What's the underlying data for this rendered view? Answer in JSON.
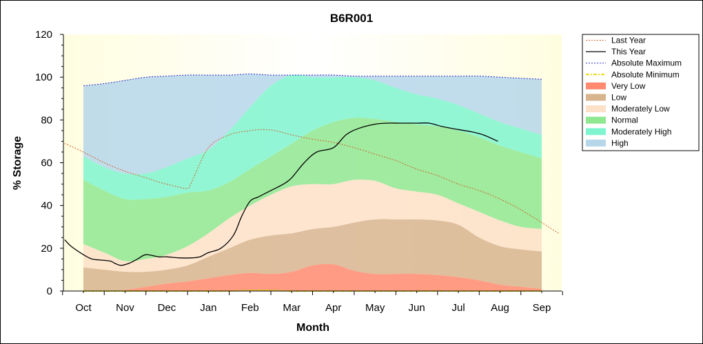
{
  "chart_data": {
    "type": "area",
    "title": "B6R001",
    "xlabel": "Month",
    "ylabel": "% Storage",
    "ylim": [
      0,
      120
    ],
    "y_ticks": [
      "0",
      "20",
      "40",
      "60",
      "80",
      "100",
      "120"
    ],
    "month_labels": [
      "Oct",
      "Nov",
      "Dec",
      "Jan",
      "Feb",
      "Mar",
      "Apr",
      "May",
      "Jun",
      "Jul",
      "Aug",
      "Sep"
    ],
    "legend_position": "right",
    "bands": [
      {
        "name": "Very Low",
        "color": "#ff8a70",
        "x": [
          0,
          0.5,
          1,
          1.5,
          2,
          2.5,
          3,
          3.5,
          4,
          4.5,
          5,
          5.5,
          6,
          6.5,
          7,
          7.5,
          8,
          8.5,
          9,
          9.5,
          10,
          10.5,
          11
        ],
        "lower": [
          0,
          0,
          0,
          0,
          0,
          0,
          0,
          0,
          0,
          0,
          0,
          0,
          0,
          0,
          0,
          0,
          0,
          0,
          0,
          0,
          0,
          0,
          0
        ],
        "upper": [
          0,
          0,
          0.5,
          2,
          3.5,
          4.5,
          6,
          7.5,
          8.5,
          8,
          9,
          12,
          12.5,
          9.5,
          8,
          8,
          8,
          7.5,
          6.5,
          5,
          3,
          2,
          1
        ]
      },
      {
        "name": "Low",
        "color": "#d8b48e",
        "x": [
          0,
          0.5,
          1,
          1.5,
          2,
          2.5,
          3,
          3.5,
          4,
          4.5,
          5,
          5.5,
          6,
          6.5,
          7,
          7.5,
          8,
          8.5,
          9,
          9.5,
          10,
          10.5,
          11
        ],
        "upper": [
          11,
          10,
          9,
          9,
          10,
          12,
          16,
          20,
          24,
          26,
          27,
          29,
          30,
          32,
          33.5,
          33.5,
          33.5,
          33,
          31,
          25,
          21,
          19.5,
          18.5
        ]
      },
      {
        "name": "Moderately Low",
        "color": "#fde0c8",
        "x": [
          0,
          0.5,
          1,
          1.5,
          2,
          2.5,
          3,
          3.5,
          4,
          4.5,
          5,
          5.5,
          6,
          6.5,
          7,
          7.5,
          8,
          8.5,
          9,
          9.5,
          10,
          10.5,
          11
        ],
        "upper": [
          22,
          18,
          14,
          15,
          17,
          21,
          27,
          34,
          40,
          45,
          49,
          50,
          50,
          52,
          51.5,
          48,
          46.5,
          45,
          41,
          37,
          33,
          30,
          29
        ]
      },
      {
        "name": "Normal",
        "color": "#8fe890",
        "x": [
          0,
          0.5,
          1,
          1.5,
          2,
          2.5,
          3,
          3.5,
          4,
          4.5,
          5,
          5.5,
          6,
          6.5,
          7,
          7.5,
          8,
          8.5,
          9,
          9.5,
          10,
          10.5,
          11
        ],
        "upper": [
          52,
          47,
          43,
          43,
          44,
          46,
          47,
          51,
          57,
          63,
          69,
          75,
          79,
          81,
          80.5,
          79,
          78,
          77,
          75,
          72,
          68,
          65,
          62
        ]
      },
      {
        "name": "Moderately High",
        "color": "#7ff5cf",
        "x": [
          0,
          0.5,
          1,
          1.5,
          2,
          2.5,
          3,
          3.5,
          4,
          4.5,
          5,
          5.5,
          6,
          6.5,
          7,
          7.5,
          8,
          8.5,
          9,
          9.5,
          10,
          10.5,
          11
        ],
        "upper": [
          63,
          58,
          55,
          55,
          58,
          62,
          66,
          75,
          86,
          96,
          101,
          100,
          100,
          100,
          98.5,
          95,
          92,
          90,
          87,
          83,
          79,
          76,
          73
        ]
      },
      {
        "name": "High",
        "color": "#b6d6ea",
        "x": [
          0,
          0.5,
          1,
          1.5,
          2,
          2.5,
          3,
          3.5,
          4,
          4.5,
          5,
          5.5,
          6,
          6.5,
          7,
          7.5,
          8,
          8.5,
          9,
          9.5,
          10,
          10.5,
          11
        ],
        "upper": [
          96,
          97,
          98.5,
          100,
          100.5,
          101,
          101,
          101,
          101.5,
          101,
          101,
          101,
          101,
          100.5,
          100.5,
          100.5,
          100.5,
          100.5,
          100.5,
          100.5,
          100,
          99.5,
          99
        ]
      }
    ],
    "series": [
      {
        "name": "Last Year",
        "color": "#d06028",
        "style": "dotted",
        "x": [
          -0.45,
          0,
          0.5,
          1,
          1.5,
          1.8,
          2.2,
          2.5,
          2.6,
          3,
          3.5,
          4,
          4.3,
          4.6,
          5,
          5.5,
          6,
          6.5,
          7,
          7.5,
          8,
          8.5,
          9,
          9.5,
          10,
          10.5,
          11,
          11.4
        ],
        "y": [
          69,
          65,
          60,
          56,
          53,
          51,
          49,
          48,
          51,
          67,
          73,
          75,
          75.5,
          75,
          73,
          71,
          69.5,
          67,
          64,
          61,
          57,
          54,
          50,
          47,
          43,
          38,
          32,
          27
        ]
      },
      {
        "name": "This Year",
        "color": "#000000",
        "style": "solid",
        "x": [
          -0.45,
          -0.3,
          0,
          0.2,
          0.4,
          0.65,
          0.75,
          0.9,
          1.1,
          1.3,
          1.5,
          1.8,
          2,
          2.3,
          2.6,
          2.8,
          3,
          3.3,
          3.6,
          3.8,
          4,
          4.2,
          4.5,
          4.8,
          5,
          5.3,
          5.6,
          6,
          6.3,
          6.6,
          7,
          7.3,
          7.6,
          8,
          8.3,
          8.6,
          9,
          9.3,
          9.6,
          9.95
        ],
        "y": [
          24,
          21,
          17,
          15,
          14.5,
          14,
          13,
          12,
          13,
          15,
          17,
          16,
          16,
          15.5,
          15.5,
          16,
          18,
          20,
          26,
          35,
          42,
          44,
          47,
          50,
          53,
          60,
          65,
          67,
          73,
          76,
          78,
          78.5,
          78.5,
          78.5,
          78.5,
          77,
          75.5,
          74.5,
          73,
          70
        ]
      },
      {
        "name": "Absolute Maximum",
        "color": "#2828c8",
        "style": "dotted",
        "x": [
          0,
          0.5,
          1,
          1.5,
          2,
          2.5,
          3,
          3.5,
          4,
          4.5,
          5,
          5.5,
          6,
          6.5,
          7,
          7.5,
          8,
          8.5,
          9,
          9.5,
          10,
          10.5,
          11
        ],
        "y": [
          96,
          97,
          98.5,
          100,
          100.5,
          101,
          101,
          101,
          101.5,
          101,
          101,
          101,
          101,
          100.5,
          100.5,
          100.5,
          100.5,
          100.5,
          100.5,
          100.5,
          100,
          99.5,
          99
        ]
      },
      {
        "name": "Absolute Minimum",
        "color": "#e8d800",
        "style": "dashdot",
        "x": [
          0,
          0.5,
          1,
          1.5,
          2,
          2.5,
          3,
          3.5,
          4,
          4.5,
          5,
          5.5,
          6,
          6.5,
          7,
          7.5,
          8,
          8.5,
          9,
          9.5,
          10,
          10.5,
          11
        ],
        "y": [
          0,
          0,
          0,
          0,
          0,
          0,
          0,
          0,
          0.3,
          0.3,
          0,
          0,
          0,
          0,
          0,
          0,
          0,
          0,
          0,
          0,
          0,
          0,
          0
        ]
      }
    ]
  },
  "legend": [
    {
      "label": "Last Year",
      "kind": "line",
      "color": "#d06028",
      "dash": "2,2",
      "width": 1
    },
    {
      "label": "This Year",
      "kind": "line",
      "color": "#000000",
      "dash": "",
      "width": 1.2
    },
    {
      "label": "Absolute Maximum",
      "kind": "line",
      "color": "#2828c8",
      "dash": "2,2",
      "width": 1
    },
    {
      "label": "Absolute Minimum",
      "kind": "line",
      "color": "#e8d800",
      "dash": "5,2,2,2",
      "width": 2
    },
    {
      "label": "Very Low",
      "kind": "swatch",
      "color": "#ff8a70"
    },
    {
      "label": "Low",
      "kind": "swatch",
      "color": "#d8b48e"
    },
    {
      "label": "Moderately Low",
      "kind": "swatch",
      "color": "#fde0c8"
    },
    {
      "label": "Normal",
      "kind": "swatch",
      "color": "#8fe890"
    },
    {
      "label": "Moderately High",
      "kind": "swatch",
      "color": "#7ff5cf"
    },
    {
      "label": "High",
      "kind": "swatch",
      "color": "#b6d6ea"
    }
  ],
  "plot_background": "#fffde8"
}
